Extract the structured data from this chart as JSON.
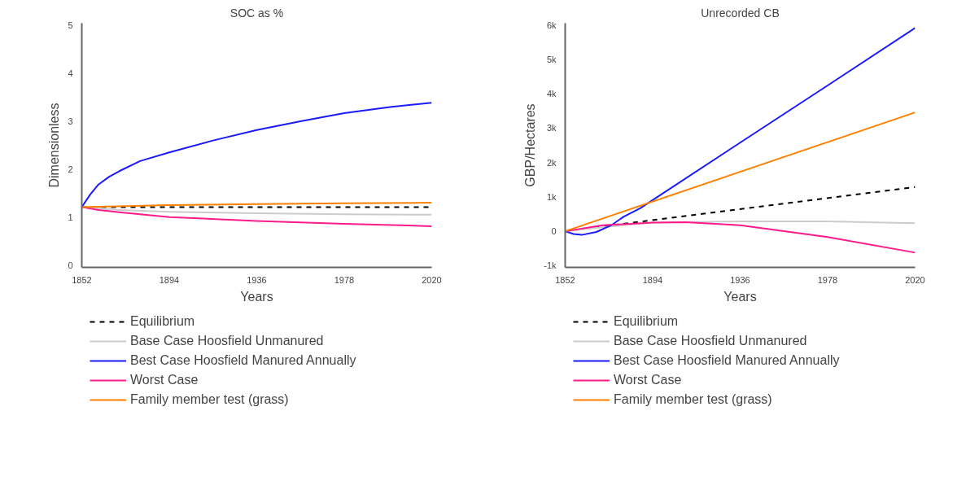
{
  "chart_data": [
    {
      "type": "line",
      "title": "SOC as %",
      "xlabel": "Years",
      "ylabel": "Dimensionless",
      "xlim": [
        1852,
        2020
      ],
      "xticks": [
        1852,
        1894,
        1936,
        1978,
        2020
      ],
      "ylim": [
        -0.05,
        5.05
      ],
      "yticks": [
        0,
        1,
        2,
        3,
        4,
        5
      ],
      "grid": false,
      "legend": "bottom",
      "series": [
        {
          "name": "Equilibrium",
          "color": "#000000",
          "line_style": "dashed",
          "x": [
            1852,
            2020
          ],
          "values": [
            1.21,
            1.21
          ]
        },
        {
          "name": "Base Case Hoosfield Unmanured",
          "color": "#cccccc",
          "line_style": "solid",
          "x": [
            1852,
            1870,
            1894,
            1936,
            1978,
            2020
          ],
          "values": [
            1.21,
            1.15,
            1.11,
            1.08,
            1.06,
            1.05
          ]
        },
        {
          "name": "Best Case Hoosfield Manured Annually",
          "color": "#1a1aff",
          "line_style": "solid",
          "x": [
            1852,
            1856,
            1860,
            1865,
            1870,
            1880,
            1894,
            1915,
            1936,
            1957,
            1978,
            2000,
            2020
          ],
          "values": [
            1.21,
            1.47,
            1.68,
            1.84,
            1.96,
            2.17,
            2.35,
            2.6,
            2.82,
            3.0,
            3.17,
            3.3,
            3.39
          ]
        },
        {
          "name": "Worst Case",
          "color": "#ff1a8c",
          "line_style": "solid",
          "x": [
            1852,
            1860,
            1870,
            1894,
            1936,
            1978,
            2020
          ],
          "values": [
            1.21,
            1.15,
            1.1,
            1.0,
            0.92,
            0.86,
            0.81
          ]
        },
        {
          "name": "Family member test (grass)",
          "color": "#ff8000",
          "line_style": "solid",
          "x": [
            1852,
            1894,
            1936,
            1978,
            2020
          ],
          "values": [
            1.21,
            1.25,
            1.27,
            1.29,
            1.3
          ]
        }
      ]
    },
    {
      "type": "line",
      "title": "Unrecorded CB",
      "xlabel": "Years",
      "ylabel": "GBP/Hectares",
      "xlim": [
        1852,
        2020
      ],
      "xticks": [
        1852,
        1894,
        1936,
        1978,
        2020
      ],
      "ylim": [
        -1050,
        6050
      ],
      "yticks": [
        {
          "value": -1000,
          "label": "-1k"
        },
        0,
        {
          "value": 1000,
          "label": "1k"
        },
        {
          "value": 2000,
          "label": "2k"
        },
        {
          "value": 3000,
          "label": "3k"
        },
        {
          "value": 4000,
          "label": "4k"
        },
        {
          "value": 5000,
          "label": "5k"
        },
        {
          "value": 6000,
          "label": "6k"
        }
      ],
      "grid": false,
      "legend": "bottom",
      "series": [
        {
          "name": "Equilibrium",
          "color": "#000000",
          "line_style": "dashed",
          "x": [
            1852,
            2020
          ],
          "values": [
            0,
            1288
          ]
        },
        {
          "name": "Base Case Hoosfield Unmanured",
          "color": "#cccccc",
          "line_style": "solid",
          "x": [
            1852,
            1870,
            1894,
            1936,
            1978,
            2020
          ],
          "values": [
            0,
            121,
            250,
            288,
            288,
            235
          ]
        },
        {
          "name": "Best Case Hoosfield Manured Annually",
          "color": "#1a1aff",
          "line_style": "solid",
          "x": [
            1852,
            1856,
            1860,
            1867,
            1874,
            1880,
            1888,
            1936,
            1978,
            2020
          ],
          "values": [
            0,
            -80,
            -106,
            -20,
            170,
            420,
            667,
            2576,
            4240,
            5909
          ]
        },
        {
          "name": "Worst Case",
          "color": "#ff1a8c",
          "line_style": "solid",
          "x": [
            1852,
            1870,
            1894,
            1910,
            1936,
            1978,
            2020
          ],
          "values": [
            0,
            174,
            250,
            265,
            174,
            -167,
            -621
          ]
        },
        {
          "name": "Family member test (grass)",
          "color": "#ff8000",
          "line_style": "solid",
          "x": [
            1852,
            2020
          ],
          "values": [
            0,
            3455
          ]
        }
      ]
    }
  ]
}
